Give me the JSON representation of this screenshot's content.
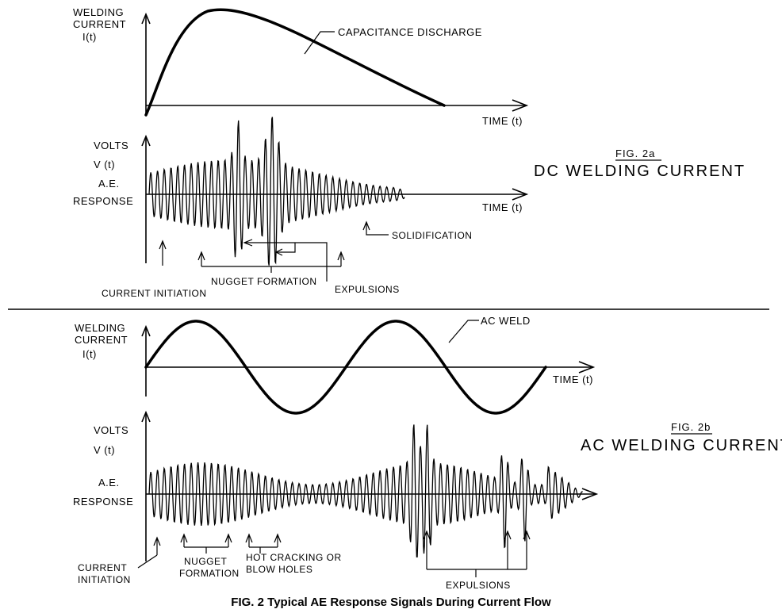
{
  "panel_a": {
    "current_label": [
      "WELDING",
      "CURRENT",
      "I(t)"
    ],
    "current_axis_label": "TIME (t)",
    "curve_label": "CAPACITANCE DISCHARGE",
    "ae_label": [
      "VOLTS",
      "V (t)",
      "A.E.",
      "RESPONSE"
    ],
    "ae_axis_label": "TIME (t)",
    "fig_num": "FIG. 2a",
    "fig_title": "DC WELDING CURRENT",
    "annotations": {
      "current_initiation": "CURRENT INITIATION",
      "nugget_formation": "NUGGET FORMATION",
      "expulsions": "EXPULSIONS",
      "solidification": "SOLIDIFICATION"
    }
  },
  "panel_b": {
    "current_label": [
      "WELDING",
      "CURRENT",
      "I(t)"
    ],
    "current_axis_label": "TIME (t)",
    "curve_label": "AC WELD",
    "ae_label": [
      "VOLTS",
      "V (t)",
      "A.E.",
      "RESPONSE"
    ],
    "fig_num": "FIG. 2b",
    "fig_title": "AC WELDING CURRENT",
    "annotations": {
      "current_initiation": [
        "CURRENT",
        "INITIATION"
      ],
      "nugget_formation": [
        "NUGGET",
        "FORMATION"
      ],
      "hot_cracking": [
        "HOT CRACKING OR",
        "BLOW HOLES"
      ],
      "expulsions": "EXPULSIONS"
    }
  },
  "caption": "FIG. 2 Typical AE Response Signals During Current Flow"
}
